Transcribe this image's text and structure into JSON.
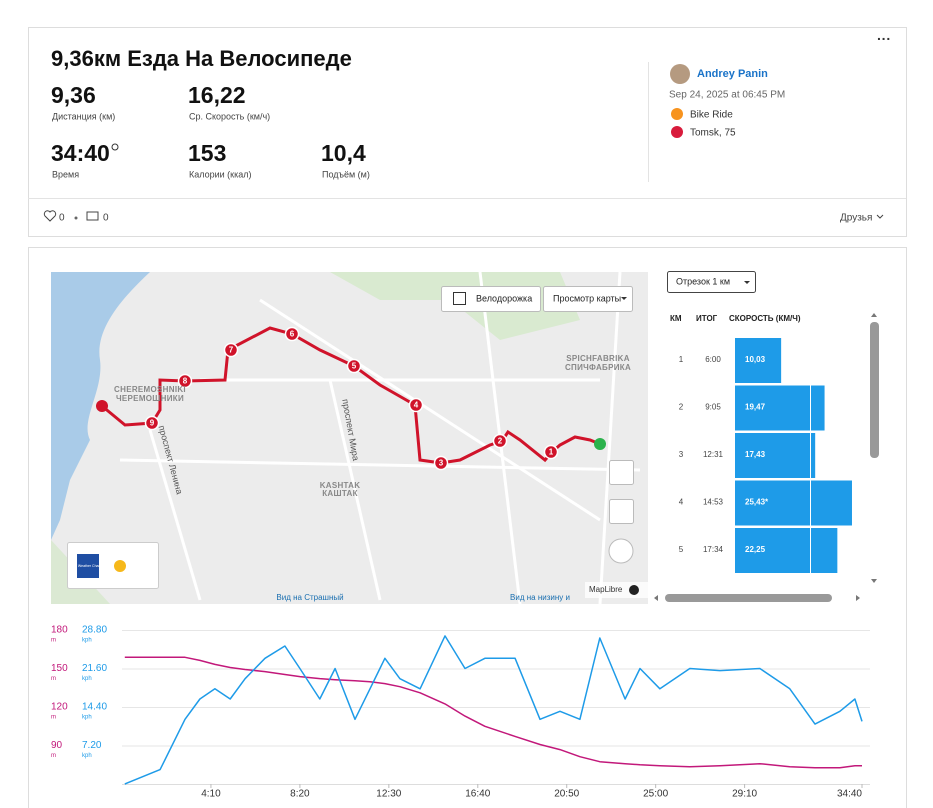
{
  "header": {
    "title": "9,36км Езда На Велосипеде",
    "stats": [
      {
        "value": "9,36",
        "label": "Дистанция (км)"
      },
      {
        "value": "16,22",
        "label": "Ср. Скорость (км/ч)"
      },
      {
        "value": "34:40",
        "label": "Время"
      },
      {
        "value": "153",
        "label": "Калории (ккал)"
      },
      {
        "value": "10,4",
        "label": "Подъём (м)"
      }
    ],
    "author": "Andrey Panin",
    "date": "Sep 24, 2025 at 06:45 PM",
    "activity": "Bike Ride",
    "location": "Tomsk, 75",
    "likes": "0",
    "comments": "0",
    "visibility": "Друзья"
  },
  "map": {
    "bike_lanes": "Велодорожка",
    "map_view": "Просмотр карты",
    "attribution": "MapLibre",
    "weather_logo": "The Weather Channel",
    "labels": [
      "CHEREMOSHNIKI",
      "ЧЕРЕМОШНИКИ",
      "SPICHFABRIKA",
      "СПИЧФАБРИКА",
      "KASHTAK",
      "КАШТАК",
      "проспект Мира",
      "проспект Ленина",
      "Вид на Страшный",
      "Вид на низину и"
    ],
    "markers": [
      "1",
      "2",
      "3",
      "4",
      "5",
      "6",
      "7",
      "8",
      "9"
    ]
  },
  "splits": {
    "selector": "Отрезок 1 км",
    "columns": [
      "КМ",
      "ИТОГ",
      "СКОРОСТЬ (КМ/Ч)"
    ],
    "rows": [
      {
        "km": "1",
        "time": "6:00",
        "speed": 10.03,
        "speed_label": "10,03"
      },
      {
        "km": "2",
        "time": "9:05",
        "speed": 19.47,
        "speed_label": "19,47"
      },
      {
        "km": "3",
        "time": "12:31",
        "speed": 17.43,
        "speed_label": "17,43"
      },
      {
        "km": "4",
        "time": "14:53",
        "speed": 25.43,
        "speed_label": "25,43*"
      },
      {
        "km": "5",
        "time": "17:34",
        "speed": 22.25,
        "speed_label": "22,25"
      }
    ]
  },
  "chart_data": {
    "type": "line",
    "x": [
      8,
      107,
      177,
      219,
      261,
      304,
      346,
      402,
      458,
      500,
      556,
      599,
      655,
      697,
      739,
      781,
      838,
      908,
      964,
      1020,
      1105,
      1175,
      1231,
      1287,
      1343,
      1414,
      1456,
      1512,
      1596,
      1681,
      1793,
      1877,
      1948,
      2018,
      2060,
      2080
    ],
    "xlim": [
      0,
      2080
    ],
    "xticks": [
      {
        "value": 250,
        "label": "4:10"
      },
      {
        "value": 500,
        "label": "8:20"
      },
      {
        "value": 750,
        "label": "12:30"
      },
      {
        "value": 1000,
        "label": "16:40"
      },
      {
        "value": 1250,
        "label": "20:50"
      },
      {
        "value": 1500,
        "label": "25:00"
      },
      {
        "value": 1750,
        "label": "29:10"
      },
      {
        "value": 2080,
        "label": "34:40"
      }
    ],
    "ylim": [
      60,
      180
    ],
    "yticks": [
      90,
      120,
      150,
      180
    ],
    "ylabel": "m",
    "y2lim": [
      0,
      28.8
    ],
    "y2ticks": [
      {
        "value": 7.2,
        "label": "7.20"
      },
      {
        "value": 14.4,
        "label": "14.40"
      },
      {
        "value": 21.6,
        "label": "21.60"
      },
      {
        "value": 28.8,
        "label": "28.80"
      }
    ],
    "y2label": "kph",
    "grid": true,
    "series": [
      {
        "color": "#c2187a",
        "values": [
          158.7,
          158.7,
          158.7,
          156.3,
          153.2,
          150.8,
          149.2,
          147.6,
          145.3,
          143.7,
          142.1,
          141.3,
          140.5,
          139.7,
          138.2,
          135.8,
          131.1,
          122.4,
          112.9,
          105,
          97.1,
          90.8,
          86.8,
          81.3,
          77.4,
          75.8,
          75,
          74.2,
          73.4,
          74.2,
          75.8,
          73.4,
          72.6,
          72.6,
          74.2,
          74.2
        ]
      },
      {
        "color": "#1e9be8",
        "axis": "y2",
        "values": [
          0,
          2.7,
          12.1,
          15.9,
          17.8,
          15.9,
          19.7,
          23.5,
          25.8,
          21.6,
          15.9,
          21.6,
          12.1,
          17.8,
          23.5,
          19.7,
          17.8,
          27.7,
          21.6,
          23.5,
          23.5,
          12.1,
          13.6,
          12.1,
          27.3,
          15.9,
          21.6,
          17.8,
          21.6,
          21.2,
          21.6,
          17.8,
          11.2,
          13.6,
          15.9,
          11.7
        ]
      }
    ]
  }
}
